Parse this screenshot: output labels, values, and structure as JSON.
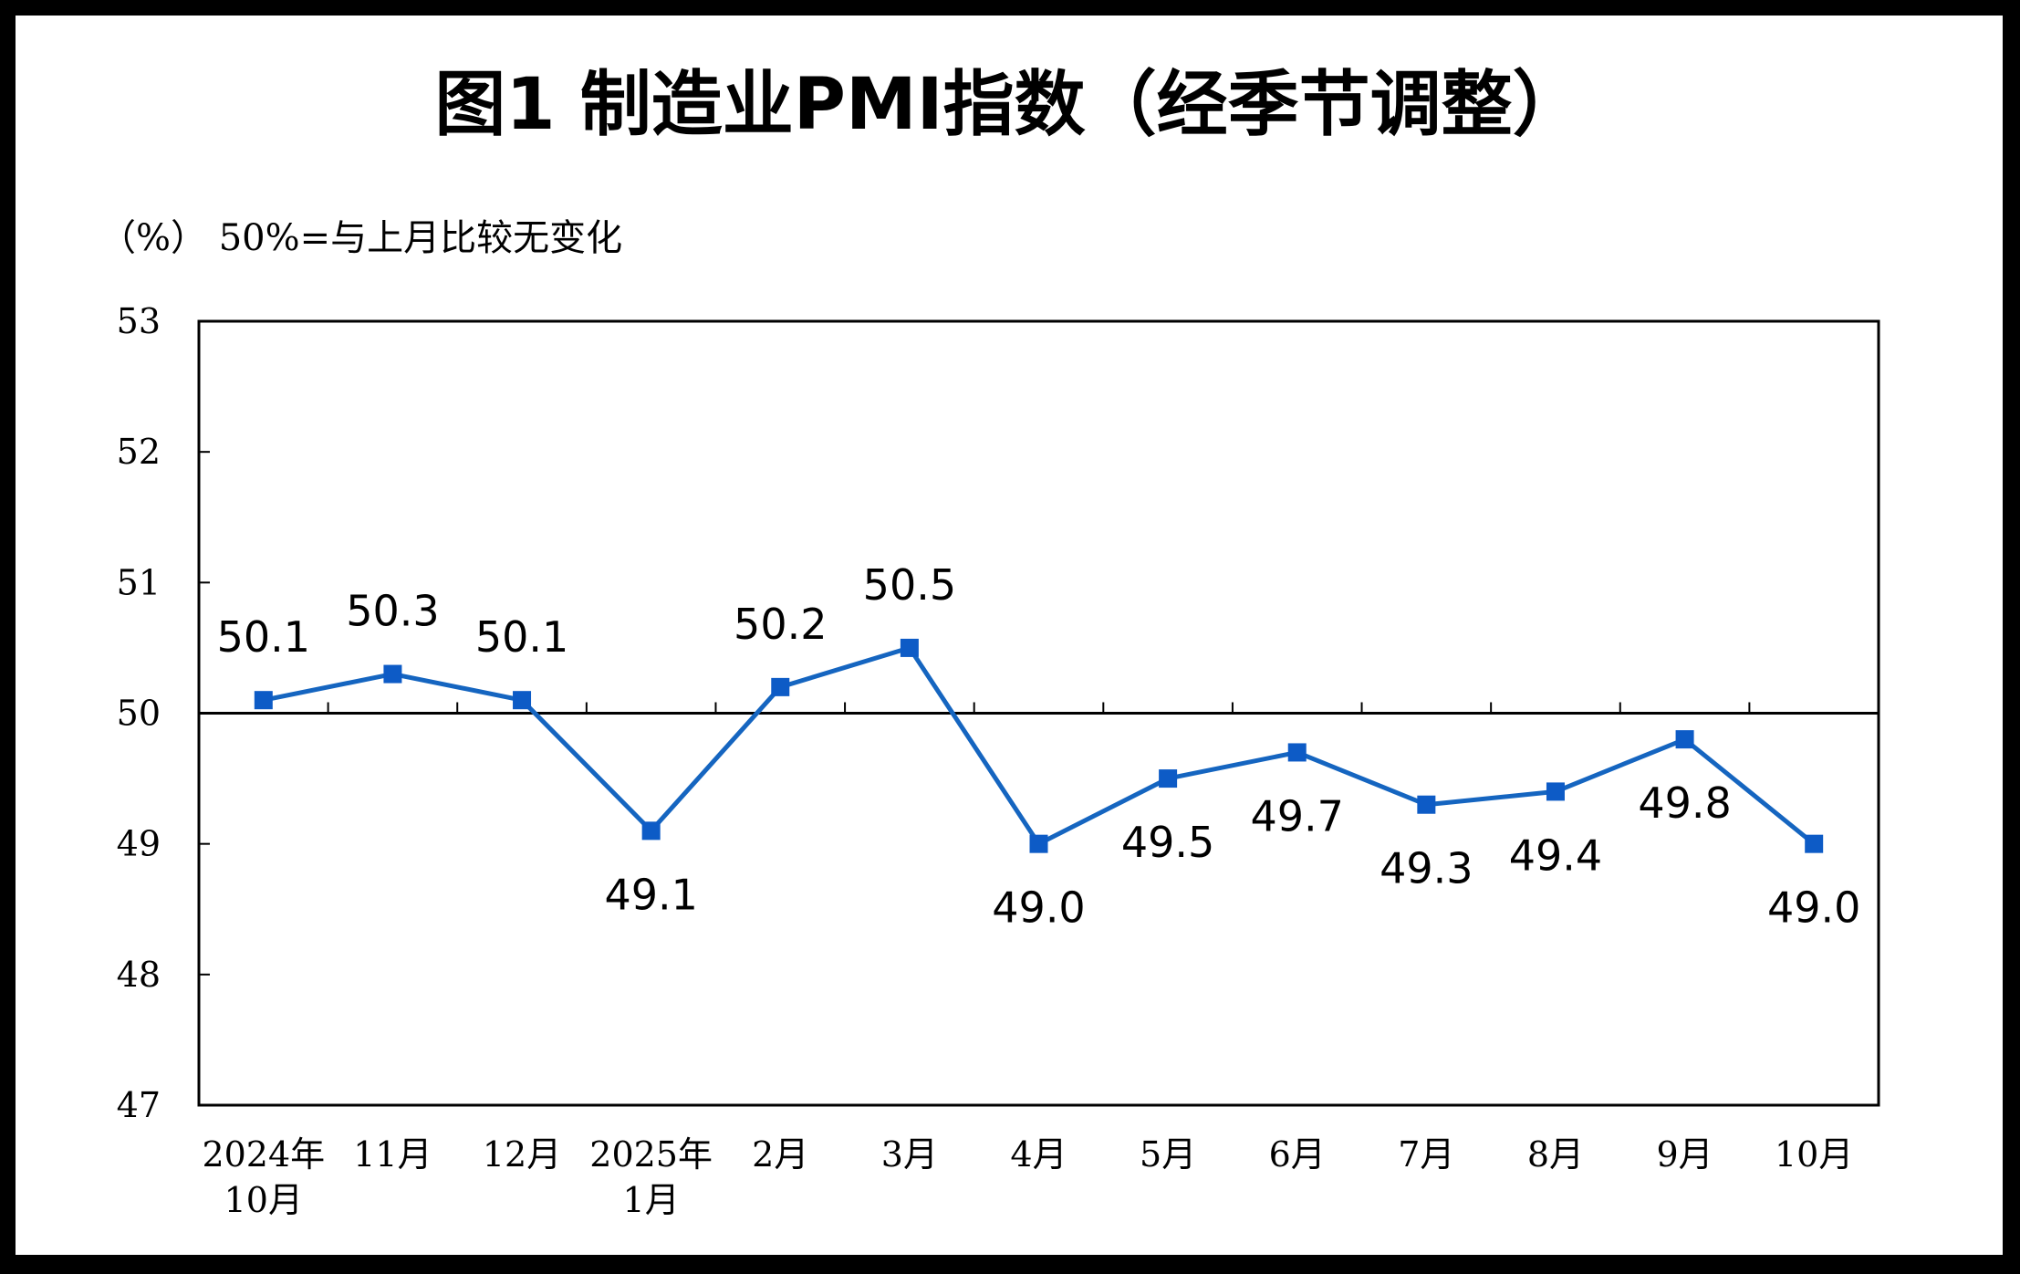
{
  "chart_data": {
    "type": "line",
    "title": "图1  制造业PMI指数（经季节调整）",
    "unit_note": "（%）  50%=与上月比较无变化",
    "categories": [
      [
        "2024年",
        "10月"
      ],
      [
        "11月"
      ],
      [
        "12月"
      ],
      [
        "2025年",
        "1月"
      ],
      [
        "2月"
      ],
      [
        "3月"
      ],
      [
        "4月"
      ],
      [
        "5月"
      ],
      [
        "6月"
      ],
      [
        "7月"
      ],
      [
        "8月"
      ],
      [
        "9月"
      ],
      [
        "10月"
      ]
    ],
    "series": [
      {
        "values": [
          50.1,
          50.3,
          50.1,
          49.1,
          50.2,
          50.5,
          49.0,
          49.5,
          49.7,
          49.3,
          49.4,
          49.8,
          49.0
        ],
        "labels": [
          "50.1",
          "50.3",
          "50.1",
          "49.1",
          "50.2",
          "50.5",
          "49.0",
          "49.5",
          "49.7",
          "49.3",
          "49.4",
          "49.8",
          "49.0"
        ],
        "label_positions": [
          "above",
          "above",
          "above",
          "below",
          "above",
          "above",
          "below",
          "below",
          "below",
          "below",
          "below",
          "below",
          "below"
        ]
      }
    ],
    "ylim": [
      47,
      53
    ],
    "yticks": [
      "47",
      "48",
      "49",
      "50",
      "51",
      "52",
      "53"
    ],
    "reference_line": 50,
    "grid": false,
    "legend": "none",
    "colors": {
      "line": "#1565C0",
      "marker": "#0D5BC6",
      "axis": "#000000",
      "background": "#ffffff",
      "frame": "#000000"
    }
  }
}
